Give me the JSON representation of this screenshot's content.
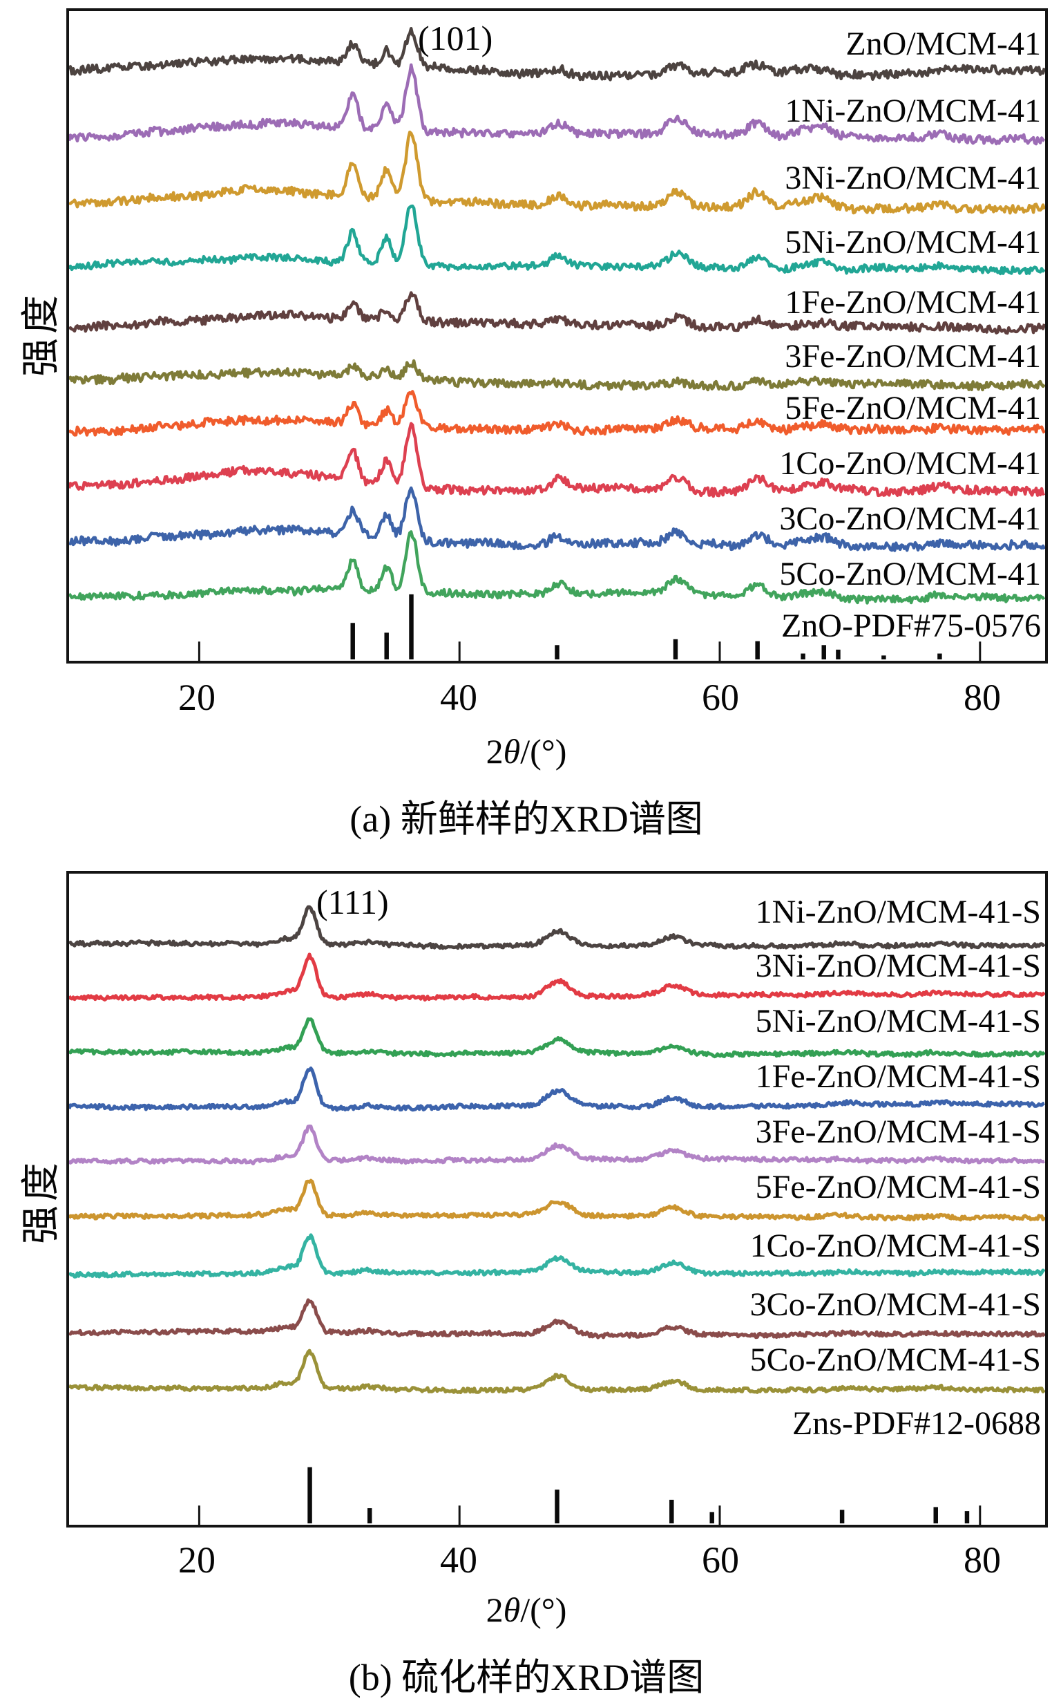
{
  "chart_data": [
    {
      "type": "line",
      "panel": "a",
      "title": "(a) 新鲜样的XRD谱图",
      "xlabel": "2θ/(°)",
      "xlabel_parts": {
        "pre": "2",
        "theta": "θ",
        "post": "/(°)"
      },
      "ylabel": "强度",
      "annotation": "(101)",
      "x_range": [
        10,
        85
      ],
      "x_ticks": [
        20,
        40,
        60,
        80
      ],
      "grid": false,
      "legend_position": "right-inline",
      "peaks_2theta": [
        31.8,
        34.4,
        36.3,
        47.6,
        56.7,
        62.9,
        66.4,
        68.0,
        76.9
      ],
      "peak_rel_heights": [
        0.5,
        0.42,
        1,
        0.16,
        0.24,
        0.2,
        0.08,
        0.13,
        0.05
      ],
      "peak_sigmas": [
        0.4,
        0.4,
        0.45,
        0.6,
        0.7,
        0.7,
        0.7,
        0.7,
        0.8
      ],
      "amorphous_hump": {
        "center": 25,
        "sigma": 6.5
      },
      "series": [
        {
          "name": "ZnO/MCM-41",
          "color": "#4c4340",
          "main_peak_height": 55,
          "hump_height": 18,
          "noise": 6
        },
        {
          "name": "1Ni-ZnO/MCM-41",
          "color": "#9c6cb5",
          "main_peak_height": 92,
          "hump_height": 15,
          "noise": 6
        },
        {
          "name": "3Ni-ZnO/MCM-41",
          "color": "#cf9a2f",
          "main_peak_height": 98,
          "hump_height": 20,
          "noise": 6
        },
        {
          "name": "5Ni-ZnO/MCM-41",
          "color": "#21a695",
          "main_peak_height": 88,
          "hump_height": 12,
          "noise": 5
        },
        {
          "name": "1Fe-ZnO/MCM-41",
          "color": "#60403f",
          "main_peak_height": 42,
          "hump_height": 12,
          "noise": 6
        },
        {
          "name": "3Fe-ZnO/MCM-41",
          "color": "#7e7b38",
          "main_peak_height": 24,
          "hump_height": 10,
          "noise": 6
        },
        {
          "name": "5Fe-ZnO/MCM-41",
          "color": "#f05c2c",
          "main_peak_height": 55,
          "hump_height": 20,
          "noise": 6
        },
        {
          "name": "1Co-ZnO/MCM-41",
          "color": "#dd4050",
          "main_peak_height": 90,
          "hump_height": 22,
          "noise": 6
        },
        {
          "name": "3Co-ZnO/MCM-41",
          "color": "#3d63a9",
          "main_peak_height": 72,
          "hump_height": 18,
          "noise": 6
        },
        {
          "name": "5Co-ZnO/MCM-41",
          "color": "#41a45c",
          "main_peak_height": 88,
          "hump_height": 16,
          "noise": 5
        }
      ],
      "reference": {
        "name": "ZnO-PDF#75-0576",
        "color": "#0a0a0a",
        "sticks_2theta": [
          31.8,
          34.4,
          36.3,
          47.5,
          56.6,
          62.9,
          66.4,
          68.0,
          69.1,
          72.6,
          76.9
        ],
        "sticks_rel_intensity": [
          0.56,
          0.41,
          1,
          0.22,
          0.31,
          0.28,
          0.09,
          0.22,
          0.15,
          0.06,
          0.09
        ]
      }
    },
    {
      "type": "line",
      "panel": "b",
      "title": "(b) 硫化样的XRD谱图",
      "xlabel": "2θ/(°)",
      "xlabel_parts": {
        "pre": "2",
        "theta": "θ",
        "post": "/(°)"
      },
      "ylabel": "强度",
      "annotation": "(111)",
      "x_range": [
        10,
        85
      ],
      "x_ticks": [
        20,
        40,
        60,
        80
      ],
      "grid": false,
      "legend_position": "right-inline",
      "peaks_2theta": [
        26.8,
        28.5,
        33.0,
        47.6,
        56.4,
        69.5,
        76.8
      ],
      "peak_rel_heights": [
        0.16,
        1,
        0.07,
        0.4,
        0.25,
        0.05,
        0.05
      ],
      "peak_sigmas": [
        0.9,
        0.5,
        0.8,
        0.9,
        0.9,
        0.9,
        0.9
      ],
      "amorphous_hump": null,
      "series": [
        {
          "name": "1Ni-ZnO/MCM-41-S",
          "color": "#4c4442",
          "main_peak_height": 52,
          "hump_height": 0,
          "noise": 3
        },
        {
          "name": "3Ni-ZnO/MCM-41-S",
          "color": "#e23b44",
          "main_peak_height": 58,
          "hump_height": 0,
          "noise": 3
        },
        {
          "name": "5Ni-ZnO/MCM-41-S",
          "color": "#33a054",
          "main_peak_height": 50,
          "hump_height": 0,
          "noise": 3
        },
        {
          "name": "1Fe-ZnO/MCM-41-S",
          "color": "#3c63ac",
          "main_peak_height": 55,
          "hump_height": 0,
          "noise": 3
        },
        {
          "name": "3Fe-ZnO/MCM-41-S",
          "color": "#b283c6",
          "main_peak_height": 48,
          "hump_height": 0,
          "noise": 3
        },
        {
          "name": "5Fe-ZnO/MCM-41-S",
          "color": "#cc952f",
          "main_peak_height": 50,
          "hump_height": 0,
          "noise": 3
        },
        {
          "name": "1Co-ZnO/MCM-41-S",
          "color": "#34b3a2",
          "main_peak_height": 52,
          "hump_height": 0,
          "noise": 3
        },
        {
          "name": "3Co-ZnO/MCM-41-S",
          "color": "#8a4c4b",
          "main_peak_height": 46,
          "hump_height": 0,
          "noise": 3
        },
        {
          "name": "5Co-ZnO/MCM-41-S",
          "color": "#9a9138",
          "main_peak_height": 52,
          "hump_height": 0,
          "noise": 3
        }
      ],
      "reference": {
        "name": "Zns-PDF#12-0688",
        "color": "#0a0a0a",
        "sticks_2theta": [
          28.5,
          33.1,
          47.5,
          56.3,
          59.4,
          69.4,
          76.6,
          79.0
        ],
        "sticks_rel_intensity": [
          1,
          0.27,
          0.6,
          0.42,
          0.2,
          0.24,
          0.29,
          0.22
        ]
      }
    }
  ]
}
